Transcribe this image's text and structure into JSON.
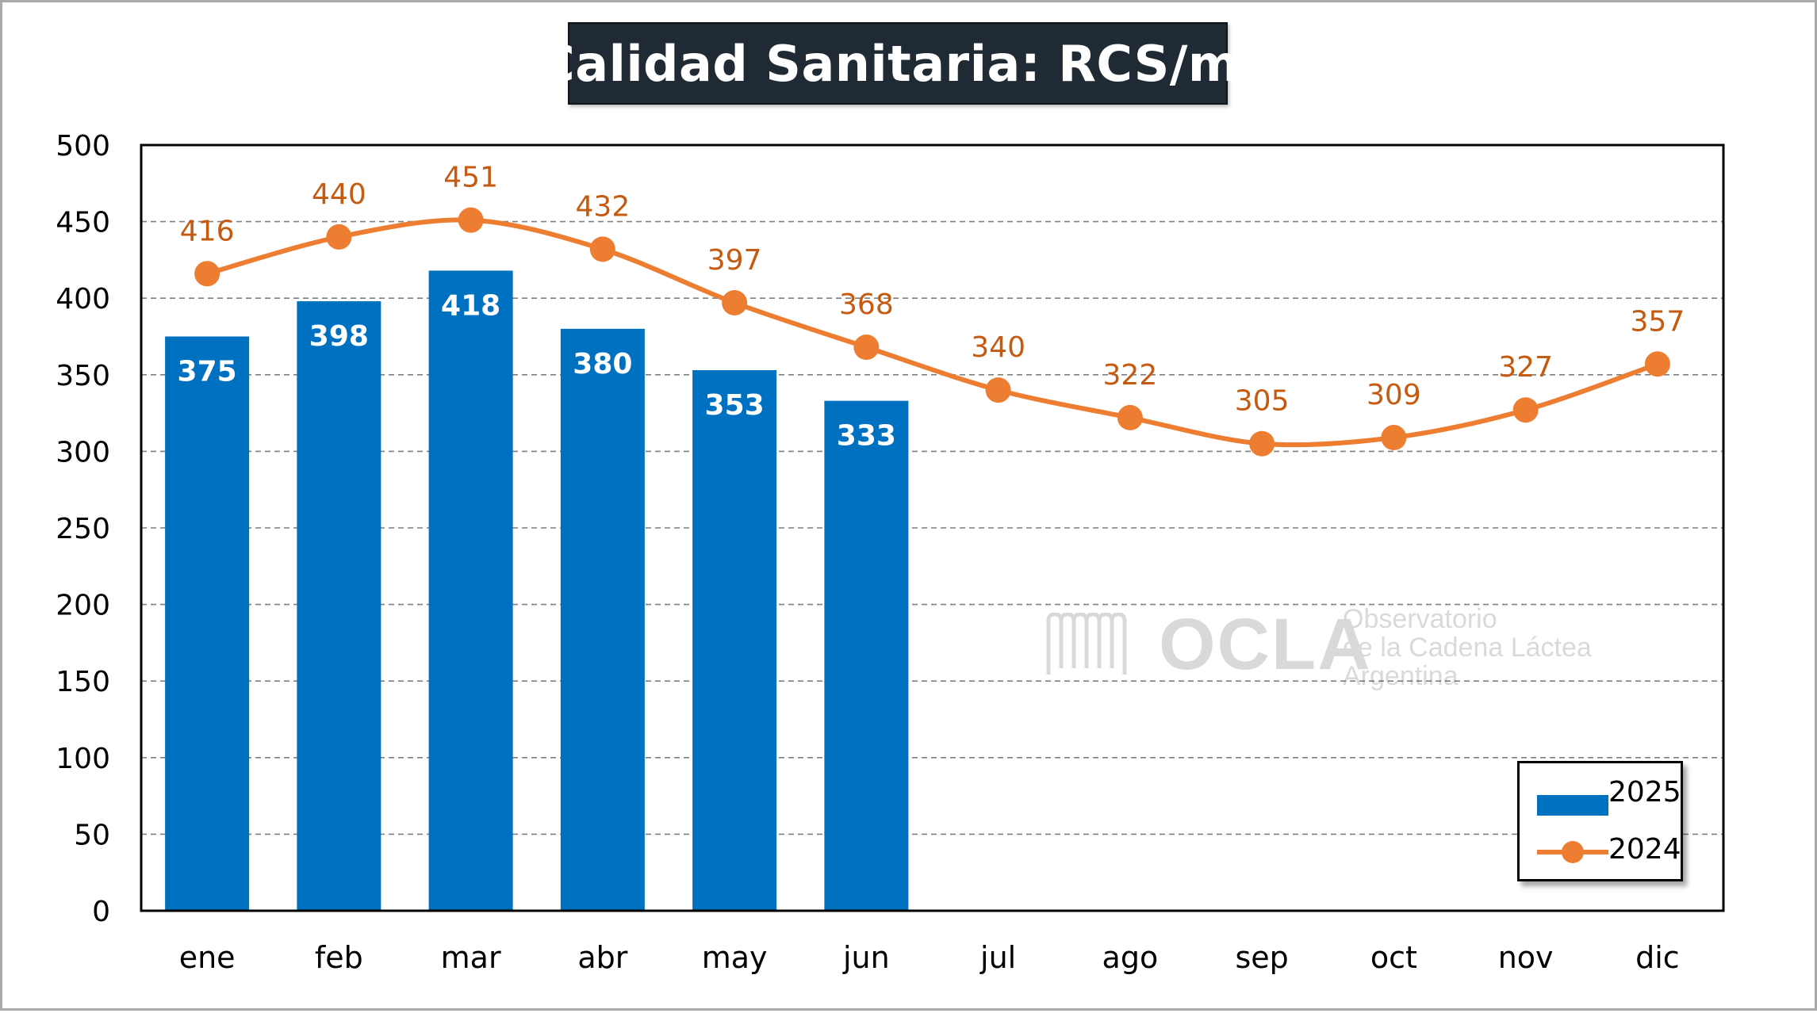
{
  "title": "Calidad Sanitaria: RCS/ml",
  "watermark": {
    "name": "OCLA",
    "line1": "Observatorio",
    "line2": "de la Cadena Láctea",
    "line3": "Argentina"
  },
  "legend": {
    "position": "bottom-right",
    "items": [
      {
        "label": "2025",
        "kind": "bar"
      },
      {
        "label": "2024",
        "kind": "line"
      }
    ]
  },
  "colors": {
    "bar_2025": "#0070c0",
    "line_2024": "#ed7d31",
    "label_2024": "#c55a11",
    "label_2025": "#ffffff",
    "title_bg": "#1f2a34",
    "grid": "#7f7f7f"
  },
  "chart_data": {
    "type": "bar",
    "title": "Calidad Sanitaria: RCS/ml",
    "xlabel": "",
    "ylabel": "",
    "categories": [
      "ene",
      "feb",
      "mar",
      "abr",
      "may",
      "jun",
      "jul",
      "ago",
      "sep",
      "oct",
      "nov",
      "dic"
    ],
    "ylim": [
      0,
      500
    ],
    "yticks": [
      0,
      50,
      100,
      150,
      200,
      250,
      300,
      350,
      400,
      450,
      500
    ],
    "grid": true,
    "legend_position": "bottom-right",
    "series": [
      {
        "name": "2025",
        "type": "bar",
        "values": [
          375,
          398,
          418,
          380,
          353,
          333,
          null,
          null,
          null,
          null,
          null,
          null
        ]
      },
      {
        "name": "2024",
        "type": "line",
        "values": [
          416,
          440,
          451,
          432,
          397,
          368,
          340,
          322,
          305,
          309,
          327,
          357
        ]
      }
    ]
  }
}
